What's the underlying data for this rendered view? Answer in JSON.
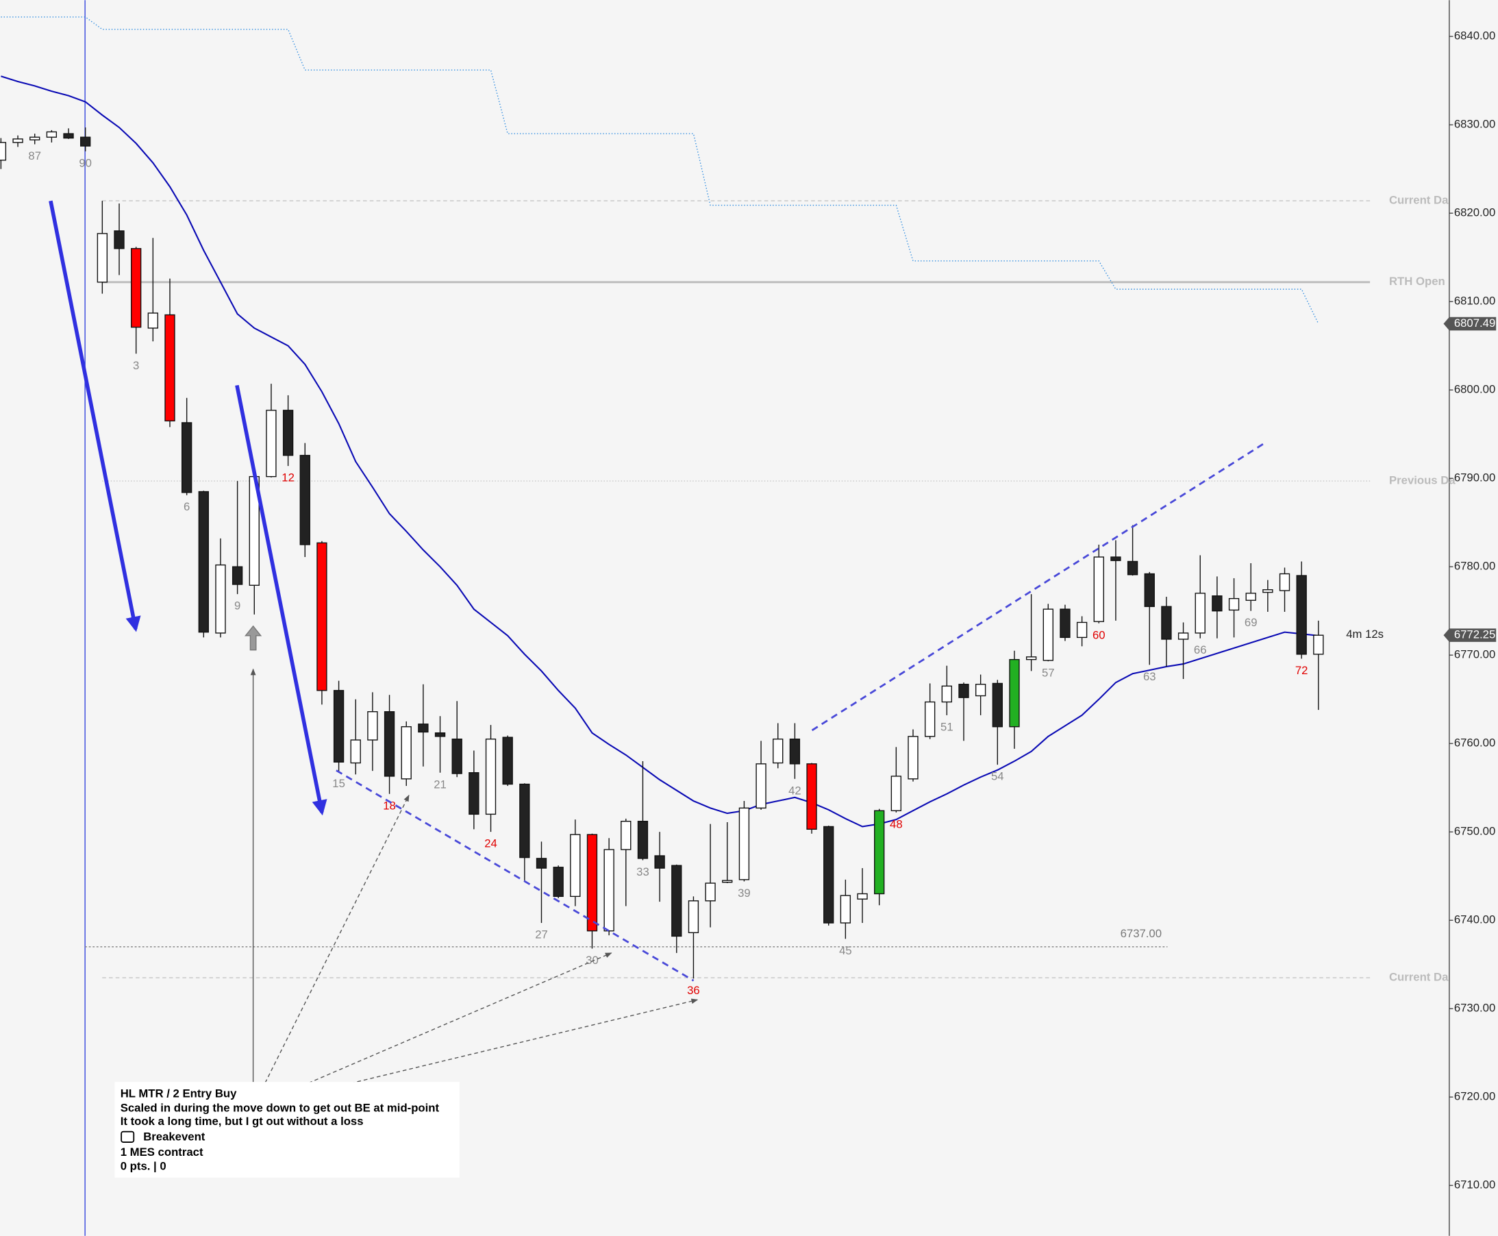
{
  "chart_data": {
    "type": "candlestick",
    "categories": [
      null,
      null,
      "87",
      null,
      null,
      "90",
      null,
      null,
      "3",
      null,
      null,
      "6",
      null,
      null,
      "9",
      null,
      null,
      "12",
      null,
      null,
      "15",
      null,
      null,
      "18",
      null,
      null,
      "21",
      null,
      null,
      "24",
      null,
      null,
      "27",
      null,
      null,
      "30",
      null,
      null,
      "33",
      null,
      null,
      "36",
      null,
      null,
      "39",
      null,
      null,
      "42",
      null,
      null,
      "45",
      null,
      null,
      "48",
      null,
      null,
      "51",
      null,
      null,
      "54",
      null,
      null,
      "57",
      null,
      null,
      "60",
      null,
      null,
      "63",
      null,
      null,
      "66",
      null,
      null,
      "69",
      null,
      null,
      "72",
      null
    ],
    "label_colors": [
      null,
      null,
      "#888888",
      null,
      null,
      "#888888",
      null,
      null,
      "#888888",
      null,
      null,
      "#888888",
      null,
      null,
      "#888888",
      null,
      null,
      "#e00000",
      null,
      null,
      "#888888",
      null,
      null,
      "#e00000",
      null,
      null,
      "#888888",
      null,
      null,
      "#e00000",
      null,
      null,
      "#888888",
      null,
      null,
      "#888888",
      null,
      null,
      "#888888",
      null,
      null,
      "#e00000",
      null,
      null,
      "#888888",
      null,
      null,
      "#888888",
      null,
      null,
      "#888888",
      null,
      null,
      "#e00000",
      null,
      null,
      "#888888",
      null,
      null,
      "#888888",
      null,
      null,
      "#888888",
      null,
      null,
      "#e00000",
      null,
      null,
      "#888888",
      null,
      null,
      "#888888",
      null,
      null,
      "#888888",
      null,
      null,
      "#e00000",
      null
    ],
    "candles": {
      "open": [
        6826.0,
        6828.0,
        6828.3,
        6828.6,
        6829.0,
        6828.6,
        6812.2,
        6818.0,
        6816.0,
        6807.0,
        6808.5,
        6796.3,
        6788.5,
        6772.5,
        6780.0,
        6777.9,
        6790.2,
        6797.7,
        6792.6,
        6782.7,
        6766.0,
        6757.8,
        6760.4,
        6763.6,
        6756.0,
        6762.2,
        6761.2,
        6760.5,
        6756.7,
        6752.0,
        6760.7,
        6755.4,
        6747.0,
        6746.0,
        6742.7,
        6749.7,
        6738.8,
        6748.0,
        6751.2,
        6747.3,
        6746.2,
        6738.6,
        6742.2,
        6744.3,
        6744.6,
        6752.7,
        6757.8,
        6760.5,
        6757.7,
        6750.6,
        6739.7,
        6742.4,
        6743.0,
        6752.4,
        6756.0,
        6760.8,
        6764.7,
        6766.7,
        6765.4,
        6766.8,
        6761.9,
        6769.5,
        6769.4,
        6775.2,
        6772.0,
        6773.8,
        6781.1,
        6780.6,
        6779.2,
        6775.5,
        6771.8,
        6772.5,
        6776.7,
        6775.1,
        6776.2,
        6777.1,
        6777.3,
        6779.0,
        6770.1
      ],
      "high": [
        6828.5,
        6828.8,
        6829.0,
        6829.4,
        6829.6,
        6829.7,
        6821.4,
        6821.1,
        6816.2,
        6817.2,
        6812.6,
        6799.1,
        6788.6,
        6783.2,
        6789.7,
        6790.3,
        6800.7,
        6799.4,
        6794.0,
        6782.9,
        6767.1,
        6765.0,
        6765.8,
        6765.5,
        6762.5,
        6766.7,
        6763.1,
        6764.8,
        6759.2,
        6762.1,
        6760.9,
        6755.5,
        6748.9,
        6746.2,
        6751.4,
        6749.8,
        6749.3,
        6751.5,
        6758.0,
        6750.0,
        6746.3,
        6742.7,
        6750.9,
        6751.1,
        6753.5,
        6760.3,
        6762.3,
        6762.3,
        6757.8,
        6750.7,
        6744.6,
        6745.9,
        6752.6,
        6759.6,
        6761.6,
        6766.8,
        6768.8,
        6766.9,
        6767.8,
        6767.2,
        6770.5,
        6776.9,
        6775.8,
        6775.7,
        6774.4,
        6782.5,
        6783.0,
        6784.7,
        6779.4,
        6776.6,
        6773.7,
        6781.3,
        6778.9,
        6778.7,
        6780.4,
        6778.5,
        6779.9,
        6780.6,
        6773.9
      ],
      "low": [
        6825.0,
        6827.5,
        6827.8,
        6828.0,
        6828.4,
        6827.0,
        6810.9,
        6813.0,
        6804.1,
        6805.5,
        6795.8,
        6788.1,
        6772.0,
        6772.0,
        6776.9,
        6774.6,
        6790.1,
        6791.4,
        6781.1,
        6764.4,
        6756.8,
        6756.5,
        6756.9,
        6754.3,
        6755.2,
        6757.4,
        6756.7,
        6756.2,
        6750.3,
        6750.0,
        6755.2,
        6744.4,
        6739.7,
        6742.5,
        6741.6,
        6736.8,
        6738.3,
        6741.6,
        6746.8,
        6742.1,
        6736.3,
        6733.4,
        6739.2,
        6744.2,
        6744.4,
        6752.5,
        6757.2,
        6756.0,
        6749.8,
        6739.4,
        6737.9,
        6739.7,
        6741.7,
        6752.2,
        6755.7,
        6760.5,
        6763.2,
        6760.3,
        6763.2,
        6757.6,
        6759.4,
        6768.2,
        6769.3,
        6771.6,
        6771.0,
        6773.6,
        6773.9,
        6779.0,
        6768.9,
        6768.7,
        6767.3,
        6771.9,
        6771.9,
        6772.0,
        6775.0,
        6774.9,
        6774.9,
        6769.6,
        6763.8
      ],
      "close": [
        6828.0,
        6828.4,
        6828.6,
        6829.2,
        6828.5,
        6827.6,
        6817.7,
        6816.0,
        6807.1,
        6808.7,
        6796.5,
        6788.4,
        6772.6,
        6780.2,
        6778.0,
        6790.2,
        6797.7,
        6792.6,
        6782.5,
        6766.0,
        6757.9,
        6760.4,
        6763.6,
        6756.3,
        6761.9,
        6761.3,
        6760.8,
        6756.6,
        6752.0,
        6760.5,
        6755.4,
        6747.1,
        6745.9,
        6742.7,
        6749.7,
        6738.8,
        6748.0,
        6751.2,
        6747.0,
        6745.9,
        6738.2,
        6742.2,
        6744.2,
        6744.5,
        6752.7,
        6757.7,
        6760.5,
        6757.7,
        6750.3,
        6739.7,
        6742.8,
        6743.0,
        6752.4,
        6756.3,
        6760.8,
        6764.7,
        6766.5,
        6765.2,
        6766.7,
        6761.9,
        6769.5,
        6769.8,
        6775.2,
        6772.0,
        6773.7,
        6781.1,
        6780.7,
        6779.1,
        6775.5,
        6771.8,
        6772.5,
        6777.0,
        6775.0,
        6776.4,
        6777.0,
        6777.4,
        6779.2,
        6770.1,
        6772.25
      ],
      "body_colors": [
        "#ffffff",
        "#ffffff",
        "#ffffff",
        "#ffffff",
        "#222222",
        "#222222",
        "#ffffff",
        "#222222",
        "#ff0000",
        "#ffffff",
        "#ff0000",
        "#222222",
        "#222222",
        "#ffffff",
        "#222222",
        "#ffffff",
        "#ffffff",
        "#222222",
        "#222222",
        "#ff0000",
        "#222222",
        "#ffffff",
        "#ffffff",
        "#222222",
        "#ffffff",
        "#222222",
        "#222222",
        "#222222",
        "#222222",
        "#ffffff",
        "#222222",
        "#222222",
        "#222222",
        "#222222",
        "#ffffff",
        "#ff0000",
        "#ffffff",
        "#ffffff",
        "#222222",
        "#222222",
        "#222222",
        "#ffffff",
        "#ffffff",
        "#ffffff",
        "#ffffff",
        "#ffffff",
        "#ffffff",
        "#222222",
        "#ff0000",
        "#222222",
        "#ffffff",
        "#ffffff",
        "#22b022",
        "#ffffff",
        "#ffffff",
        "#ffffff",
        "#ffffff",
        "#222222",
        "#ffffff",
        "#222222",
        "#22b022",
        "#ffffff",
        "#ffffff",
        "#222222",
        "#ffffff",
        "#ffffff",
        "#222222",
        "#222222",
        "#222222",
        "#222222",
        "#ffffff",
        "#ffffff",
        "#222222",
        "#ffffff",
        "#ffffff",
        "#ffffff",
        "#ffffff",
        "#222222",
        "#ffffff"
      ],
      "last_label": "6772.25"
    },
    "lines": [
      {
        "color": "#0a0ab4",
        "style": "solid",
        "values": [
          6835.5,
          6834.9,
          6834.4,
          6833.8,
          6833.3,
          6832.6,
          6831.1,
          6829.7,
          6827.9,
          6825.7,
          6823.0,
          6819.8,
          6815.8,
          6812.2,
          6808.6,
          6807.0,
          6806.0,
          6805.0,
          6802.9,
          6799.8,
          6796.2,
          6791.9,
          6789.0,
          6786.0,
          6784.0,
          6781.9,
          6780.0,
          6777.9,
          6775.2,
          6773.7,
          6772.2,
          6770.1,
          6768.2,
          6766.0,
          6764.0,
          6761.2,
          6759.9,
          6758.7,
          6757.3,
          6755.9,
          6754.7,
          6753.5,
          6752.7,
          6752.1,
          6752.4,
          6753.1,
          6753.5,
          6753.9,
          6753.3,
          6752.5,
          6751.5,
          6750.6,
          6750.9,
          6751.4,
          6752.4,
          6753.4,
          6754.3,
          6755.3,
          6756.2,
          6757.0,
          6758.0,
          6759.1,
          6760.8,
          6762.0,
          6763.2,
          6765.0,
          6766.9,
          6767.9,
          6768.3,
          6768.7,
          6769.0,
          6769.6,
          6770.2,
          6770.8,
          6771.4,
          6772.0,
          6772.6,
          6772.4,
          6772.2
        ]
      },
      {
        "color": "#2a8ae0",
        "style": "dotted",
        "values": [
          6842.2,
          6842.2,
          6842.2,
          6842.2,
          6842.2,
          6842.2,
          6840.8,
          6840.8,
          6840.8,
          6840.8,
          6840.8,
          6840.8,
          6840.8,
          6840.8,
          6840.8,
          6840.8,
          6840.8,
          6840.8,
          6836.2,
          6836.2,
          6836.2,
          6836.2,
          6836.2,
          6836.2,
          6836.2,
          6836.2,
          6836.2,
          6836.2,
          6836.2,
          6836.2,
          6829.0,
          6829.0,
          6829.0,
          6829.0,
          6829.0,
          6829.0,
          6829.0,
          6829.0,
          6829.0,
          6829.0,
          6829.0,
          6829.0,
          6820.9,
          6820.9,
          6820.9,
          6820.9,
          6820.9,
          6820.9,
          6820.9,
          6820.9,
          6820.9,
          6820.9,
          6820.9,
          6820.9,
          6814.6,
          6814.6,
          6814.6,
          6814.6,
          6814.6,
          6814.6,
          6814.6,
          6814.6,
          6814.6,
          6814.6,
          6814.6,
          6814.6,
          6811.4,
          6811.4,
          6811.4,
          6811.4,
          6811.4,
          6811.4,
          6811.4,
          6811.4,
          6811.4,
          6811.4,
          6811.4,
          6811.4,
          6807.49
        ],
        "last_label": "6807.49"
      }
    ],
    "levels": [
      {
        "label": "Current Da",
        "value": 6821.4,
        "style": "dashed"
      },
      {
        "label": "RTH Open",
        "value": 6812.2,
        "style": "solid"
      },
      {
        "label": "Previous Da",
        "value": 6789.7,
        "style": "dotted"
      },
      {
        "label": "Current Da",
        "value": 6733.5,
        "style": "dashed"
      }
    ],
    "price_line": {
      "value": 6737,
      "label": "6737.00"
    },
    "timer": "4m 12s",
    "ylim": [
      6704.3,
      6844.1
    ],
    "yticks": [
      {
        "value": 6710,
        "label": "6710.00"
      },
      {
        "value": 6720,
        "label": "6720.00"
      },
      {
        "value": 6730,
        "label": "6730.00"
      },
      {
        "value": 6740,
        "label": "6740.00"
      },
      {
        "value": 6750,
        "label": "6750.00"
      },
      {
        "value": 6760,
        "label": "6760.00"
      },
      {
        "value": 6770,
        "label": "6770.00"
      },
      {
        "value": 6780,
        "label": "6780.00"
      },
      {
        "value": 6790,
        "label": "6790.00"
      },
      {
        "value": 6800,
        "label": "6800.00"
      },
      {
        "value": 6810,
        "label": "6810.00"
      },
      {
        "value": 6820,
        "label": "6820.00"
      },
      {
        "value": 6830,
        "label": "6830.00"
      },
      {
        "value": 6840,
        "label": "6840.00"
      }
    ],
    "annotation": {
      "lines": [
        "HL MTR / 2 Entry Buy",
        "Scaled in during the move down to get out BE at mid-point",
        "It took a long time, but I gt out without a loss",
        "Breakevent",
        "1 MES contract",
        "0 pts. | 0"
      ]
    }
  }
}
